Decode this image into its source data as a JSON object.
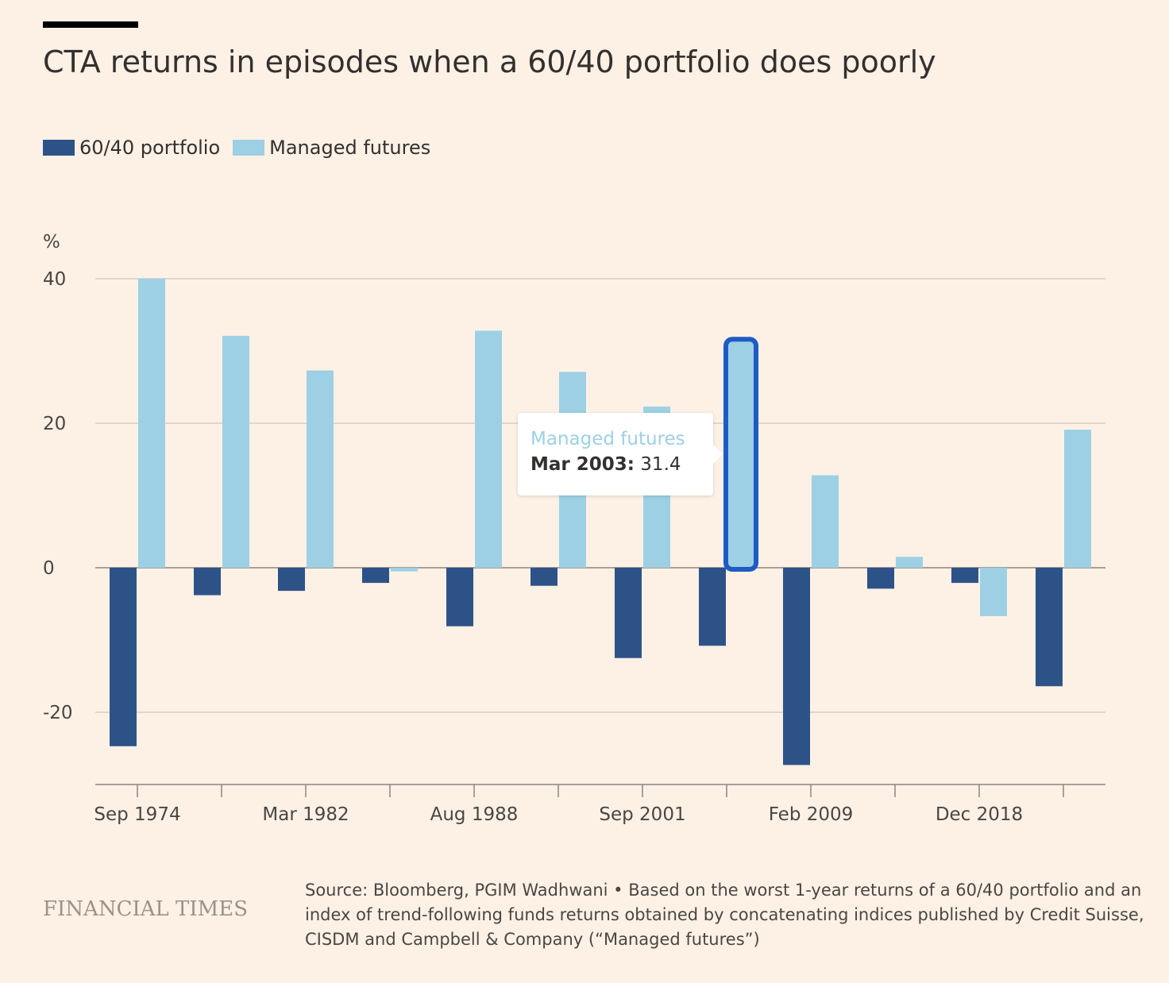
{
  "header": {
    "title": "CTA returns in episodes when a 60/40 portfolio does poorly"
  },
  "legend": [
    {
      "label": "60/40 portfolio",
      "color": "#2d5288"
    },
    {
      "label": "Managed futures",
      "color": "#9dd0e4"
    }
  ],
  "chart_data": {
    "type": "bar",
    "unit_label": "%",
    "ylim": [
      -30,
      40
    ],
    "yticks": [
      40,
      20,
      0,
      -20
    ],
    "ytick_labels": [
      "40",
      "20",
      "0",
      "-20"
    ],
    "x_tick_labels": [
      "Sep 1974",
      "Mar 1982",
      "Aug 1988",
      "Sep 2001",
      "Feb 2009",
      "Dec 2018"
    ],
    "x_tick_labels_every": 2,
    "grid": true,
    "categories_count": 12,
    "series": [
      {
        "name": "60/40 portfolio",
        "color": "#2d5288",
        "values": [
          -24.7,
          -3.8,
          -3.2,
          -2.1,
          -8.1,
          -2.5,
          -12.5,
          -10.8,
          -27.3,
          -2.9,
          -2.1,
          -16.4
        ]
      },
      {
        "name": "Managed futures",
        "color": "#9dd0e4",
        "values": [
          40.0,
          32.1,
          27.3,
          -0.5,
          32.8,
          27.1,
          22.3,
          31.4,
          12.8,
          1.5,
          -6.7,
          19.1
        ]
      }
    ],
    "highlight": {
      "series": 1,
      "index": 7
    }
  },
  "tooltip": {
    "series": "Managed futures",
    "date": "Mar 2003:",
    "value": "31.4"
  },
  "footer": {
    "brand": "FINANCIAL TIMES",
    "source": "Source: Bloomberg, PGIM Wadhwani • Based on the worst 1-year returns of a 60/40 portfolio and an index of trend-following funds returns obtained by concatenating indices published by Credit Suisse, CISDM and Campbell & Company (“Managed futures”)"
  }
}
